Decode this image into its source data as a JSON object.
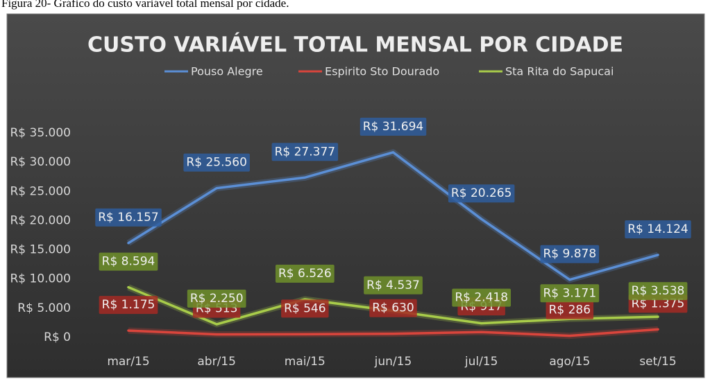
{
  "chart_data": {
    "type": "line",
    "caption": "Figura 20- Gráfico do custo variável total mensal por cidade.",
    "title": "CUSTO VARIÁVEL TOTAL MENSAL POR CIDADE",
    "categories": [
      "mar/15",
      "abr/15",
      "mai/15",
      "jun/15",
      "jul/15",
      "ago/15",
      "set/15"
    ],
    "series": [
      {
        "name": "Pouso Alegre",
        "color": "#5b8fd6",
        "label_bg": "#2f5d9c",
        "values": [
          16157,
          25560,
          27377,
          31694,
          20265,
          9878,
          14124
        ],
        "value_labels": [
          "R$ 16.157",
          "R$ 25.560",
          "R$ 27.377",
          "R$ 31.694",
          "R$ 20.265",
          "R$ 9.878",
          "R$ 14.124"
        ]
      },
      {
        "name": "Espirito Sto Dourado",
        "color": "#d9453c",
        "label_bg": "#a52a25",
        "values": [
          1175,
          513,
          546,
          630,
          917,
          286,
          1375
        ],
        "value_labels": [
          "R$ 1.175",
          "R$ 513",
          "R$ 546",
          "R$ 630",
          "R$ 917",
          "R$ 286",
          "R$ 1.375"
        ]
      },
      {
        "name": "Sta Rita do Sapucai",
        "color": "#a8cc4a",
        "label_bg": "#6f8f2a",
        "values": [
          8594,
          2250,
          6526,
          4537,
          2418,
          3171,
          3538
        ],
        "value_labels": [
          "R$ 8.594",
          "R$ 2.250",
          "R$ 6.526",
          "R$ 4.537",
          "R$ 2.418",
          "R$ 3.171",
          "R$ 3.538"
        ]
      }
    ],
    "ylim": [
      0,
      35000
    ],
    "yticks": [
      {
        "value": 0,
        "label": "R$ 0"
      },
      {
        "value": 5000,
        "label": "R$ 5.000"
      },
      {
        "value": 10000,
        "label": "R$ 10.000"
      },
      {
        "value": 15000,
        "label": "R$ 15.000"
      },
      {
        "value": 20000,
        "label": "R$ 20.000"
      },
      {
        "value": 25000,
        "label": "R$ 25.000"
      },
      {
        "value": 30000,
        "label": "R$ 30.000"
      },
      {
        "value": 35000,
        "label": "R$ 35.000"
      }
    ],
    "legend": "top",
    "grid": false
  }
}
